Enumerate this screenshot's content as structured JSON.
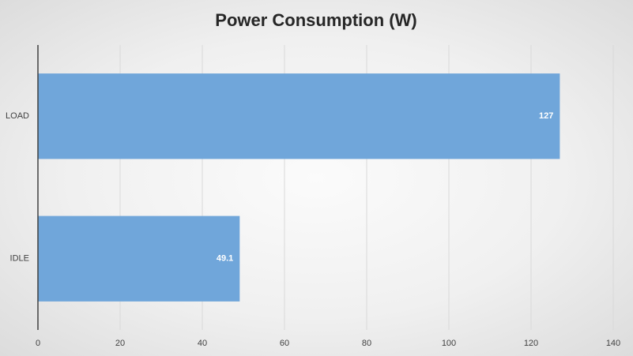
{
  "chart_data": {
    "type": "bar",
    "orientation": "horizontal",
    "title": "Power Consumption (W)",
    "categories": [
      "LOAD",
      "IDLE"
    ],
    "values": [
      127,
      49.1
    ],
    "color": "#70a6da",
    "xlim": [
      0,
      140
    ],
    "xticks": [
      0,
      20,
      40,
      60,
      80,
      100,
      120,
      140
    ],
    "grid": true,
    "data_labels": true
  }
}
